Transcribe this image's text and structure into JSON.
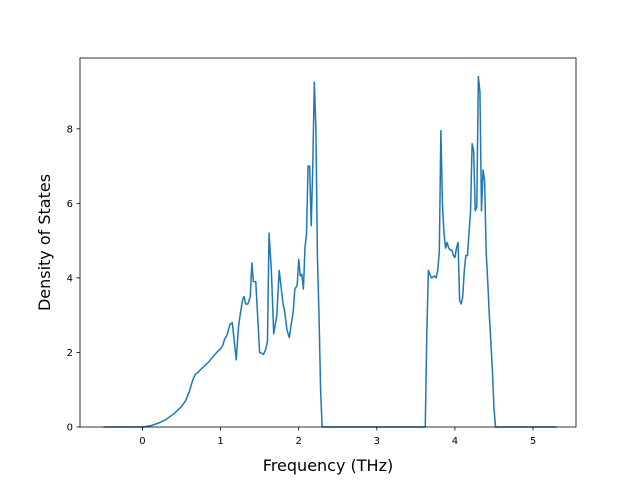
{
  "chart_data": {
    "type": "line",
    "title": "",
    "xlabel": "Frequency (THz)",
    "ylabel": "Density of States",
    "xlim": [
      -0.8,
      5.55
    ],
    "ylim": [
      0,
      9.9
    ],
    "xticks": [
      0,
      1,
      2,
      3,
      4,
      5
    ],
    "yticks": [
      0,
      2,
      4,
      6,
      8
    ],
    "grid": false,
    "legend": "none",
    "line_color": "#1f77b4",
    "series": [
      {
        "x": [
          -0.5,
          0.0,
          0.1,
          0.2,
          0.3,
          0.4,
          0.5,
          0.55,
          0.6,
          0.62,
          0.65,
          0.68,
          0.7,
          0.75,
          0.8,
          0.85,
          0.9,
          0.95,
          1.0,
          1.03,
          1.05,
          1.08,
          1.1,
          1.12,
          1.15,
          1.2,
          1.23,
          1.25,
          1.28,
          1.3,
          1.32,
          1.35,
          1.38,
          1.4,
          1.42,
          1.45,
          1.5,
          1.55,
          1.58,
          1.6,
          1.62,
          1.65,
          1.68,
          1.72,
          1.75,
          1.8,
          1.82,
          1.85,
          1.88,
          1.9,
          1.93,
          1.95,
          1.98,
          2.0,
          2.02,
          2.04,
          2.06,
          2.08,
          2.1,
          2.12,
          2.14,
          2.16,
          2.18,
          2.2,
          2.22,
          2.24,
          2.26,
          2.28,
          2.3,
          2.32,
          2.34,
          2.36,
          2.38,
          2.4,
          3.5,
          3.58,
          3.6,
          3.62,
          3.64,
          3.66,
          3.7,
          3.74,
          3.76,
          3.78,
          3.8,
          3.82,
          3.84,
          3.86,
          3.88,
          3.9,
          3.92,
          3.94,
          3.96,
          3.98,
          4.0,
          4.02,
          4.04,
          4.06,
          4.08,
          4.1,
          4.12,
          4.14,
          4.16,
          4.18,
          4.2,
          4.22,
          4.24,
          4.26,
          4.28,
          4.3,
          4.32,
          4.34,
          4.36,
          4.38,
          4.4,
          4.42,
          4.44,
          4.46,
          4.48,
          4.5,
          4.52,
          4.54,
          4.56,
          4.58,
          4.6,
          4.62,
          4.64,
          4.66,
          4.68,
          4.7,
          4.72,
          4.74,
          4.76,
          4.78,
          4.8,
          4.82,
          4.84,
          5.3
        ],
        "y": [
          0,
          0,
          0.03,
          0.1,
          0.2,
          0.35,
          0.55,
          0.7,
          0.95,
          1.1,
          1.3,
          1.42,
          1.45,
          1.55,
          1.65,
          1.75,
          1.88,
          2.0,
          2.1,
          2.2,
          2.35,
          2.45,
          2.6,
          2.75,
          2.8,
          1.8,
          2.7,
          3.0,
          3.4,
          3.5,
          3.3,
          3.3,
          3.5,
          4.4,
          3.9,
          3.9,
          2.0,
          1.95,
          2.1,
          2.3,
          5.2,
          4.2,
          2.5,
          3.0,
          4.2,
          3.3,
          3.1,
          2.6,
          2.4,
          2.7,
          3.1,
          3.7,
          3.8,
          4.5,
          4.05,
          4.1,
          3.7,
          4.8,
          5.2,
          7.0,
          7.0,
          5.4,
          7.0,
          9.25,
          8.0,
          4.5,
          3.0,
          1.0,
          0,
          0,
          0,
          0,
          0,
          0,
          0,
          0,
          0,
          0,
          2.5,
          4.2,
          4.0,
          4.05,
          4.0,
          4.2,
          4.7,
          7.95,
          6.0,
          5.2,
          4.8,
          4.95,
          4.8,
          4.75,
          4.75,
          4.6,
          4.55,
          4.8,
          4.95,
          3.4,
          3.3,
          3.5,
          4.2,
          4.6,
          4.6,
          5.2,
          5.8,
          7.6,
          7.4,
          5.8,
          5.9,
          9.4,
          9.0,
          5.8,
          6.9,
          6.6,
          4.7,
          3.9,
          3.0,
          2.3,
          1.5,
          0.5,
          0,
          0,
          0,
          0,
          0,
          0,
          0,
          0,
          0,
          0,
          0,
          0,
          0,
          0,
          0,
          0,
          0,
          0
        ]
      }
    ]
  }
}
